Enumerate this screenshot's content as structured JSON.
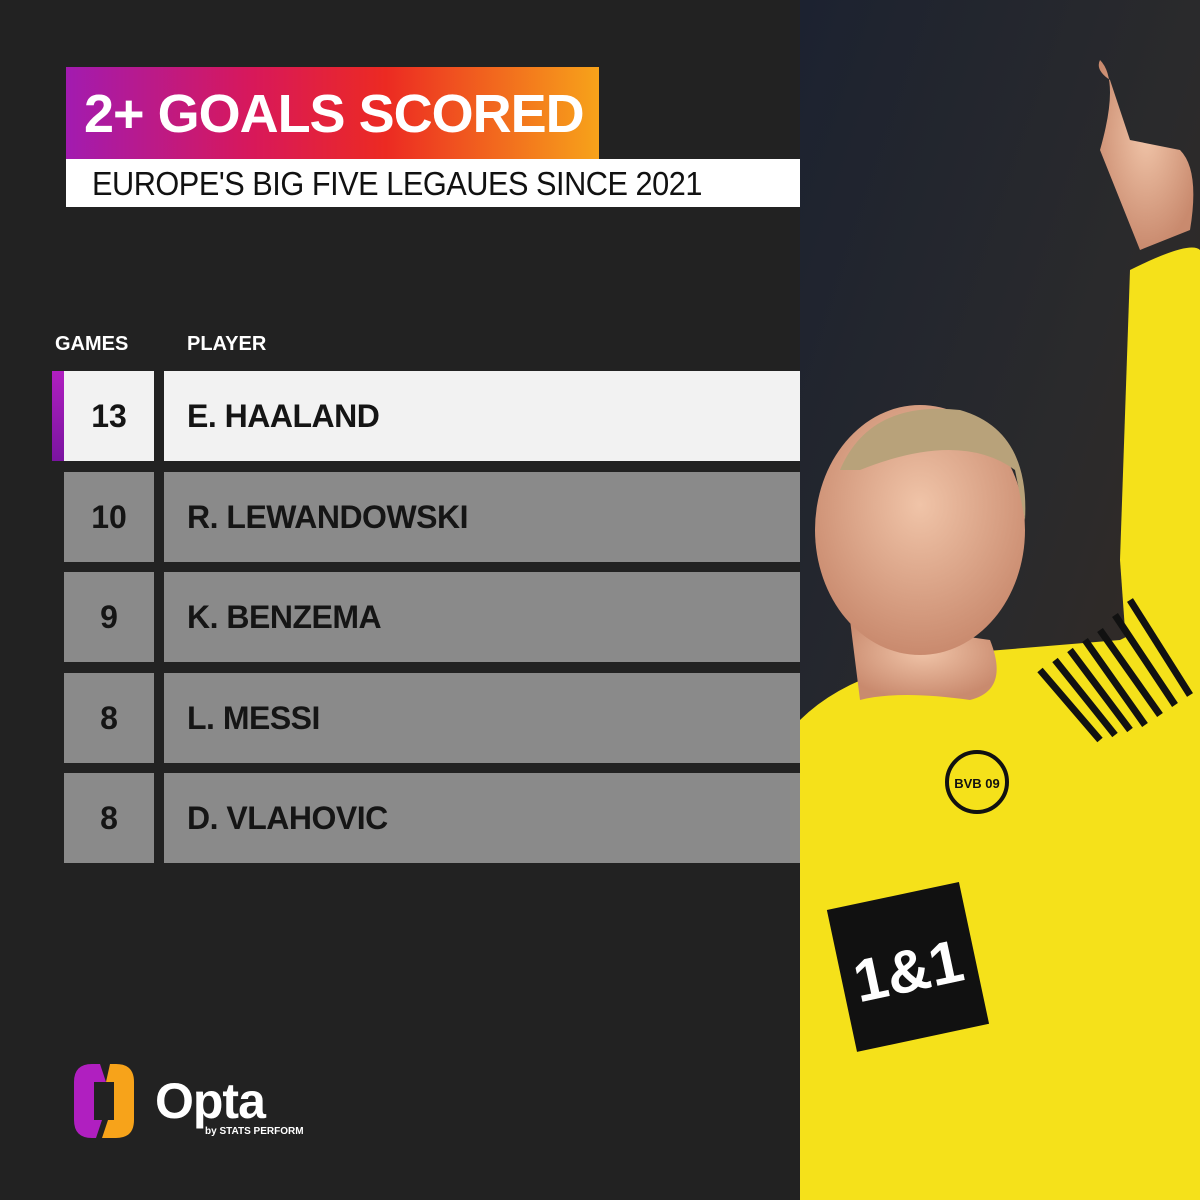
{
  "header": {
    "title": "2+ GOALS SCORED",
    "subtitle": "EUROPE'S  BIG FIVE LEGAUES SINCE 2021"
  },
  "table": {
    "columns": [
      "GAMES",
      "PLAYER"
    ],
    "rows": [
      {
        "games": "13",
        "player": "E. HAALAND",
        "highlighted": true
      },
      {
        "games": "10",
        "player": "R. LEWANDOWSKI",
        "highlighted": false
      },
      {
        "games": "9",
        "player": "K. BENZEMA",
        "highlighted": false
      },
      {
        "games": "8",
        "player": "L. MESSI",
        "highlighted": false
      },
      {
        "games": "8",
        "player": "D. VLAHOVIC",
        "highlighted": false
      }
    ]
  },
  "photo": {
    "jersey_sponsor": "1&1",
    "club_badge": "BVB 09"
  },
  "branding": {
    "logo": "Opta",
    "logo_sub": "by STATS PERFORM"
  },
  "colors": {
    "background": "#222222",
    "row": "#8a8a8a",
    "highlight_row": "#f2f2f2",
    "accent": "#b01fc0",
    "gradient_start": "#a21bb0",
    "gradient_end": "#f7a31a",
    "jersey": "#f5e11a"
  }
}
